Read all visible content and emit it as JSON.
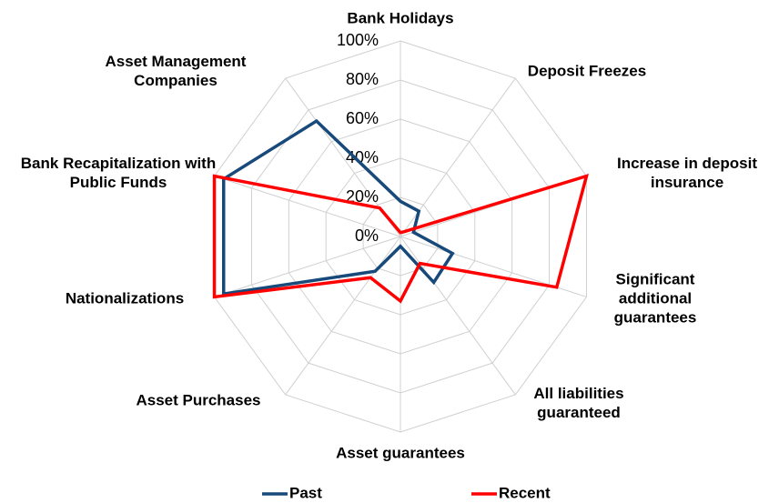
{
  "chart_data": {
    "type": "radar",
    "categories": [
      "Bank Holidays",
      "Deposit Freezes",
      "Increase in deposit insurance",
      "Significant additional guarantees",
      "All liabilities guaranteed",
      "Asset guarantees",
      "Asset Purchases",
      "Nationalizations",
      "Bank Recapitalization with Public Funds",
      "Asset Management Companies"
    ],
    "series": [
      {
        "name": "Past",
        "color": "#17497a",
        "values": [
          18,
          16,
          7,
          28,
          29,
          5,
          22,
          95,
          95,
          73
        ]
      },
      {
        "name": "Recent",
        "color": "#ff0000",
        "values": [
          2,
          3,
          100,
          84,
          17,
          33,
          26,
          100,
          100,
          18
        ]
      }
    ],
    "ylim": [
      0,
      100
    ],
    "yticks": [
      {
        "value": 0,
        "label": "0%"
      },
      {
        "value": 20,
        "label": "20%"
      },
      {
        "value": 40,
        "label": "40%"
      },
      {
        "value": 60,
        "label": "60%"
      },
      {
        "value": 80,
        "label": "80%"
      },
      {
        "value": 100,
        "label": "100%"
      }
    ],
    "grid": true,
    "legend": "bottom"
  }
}
